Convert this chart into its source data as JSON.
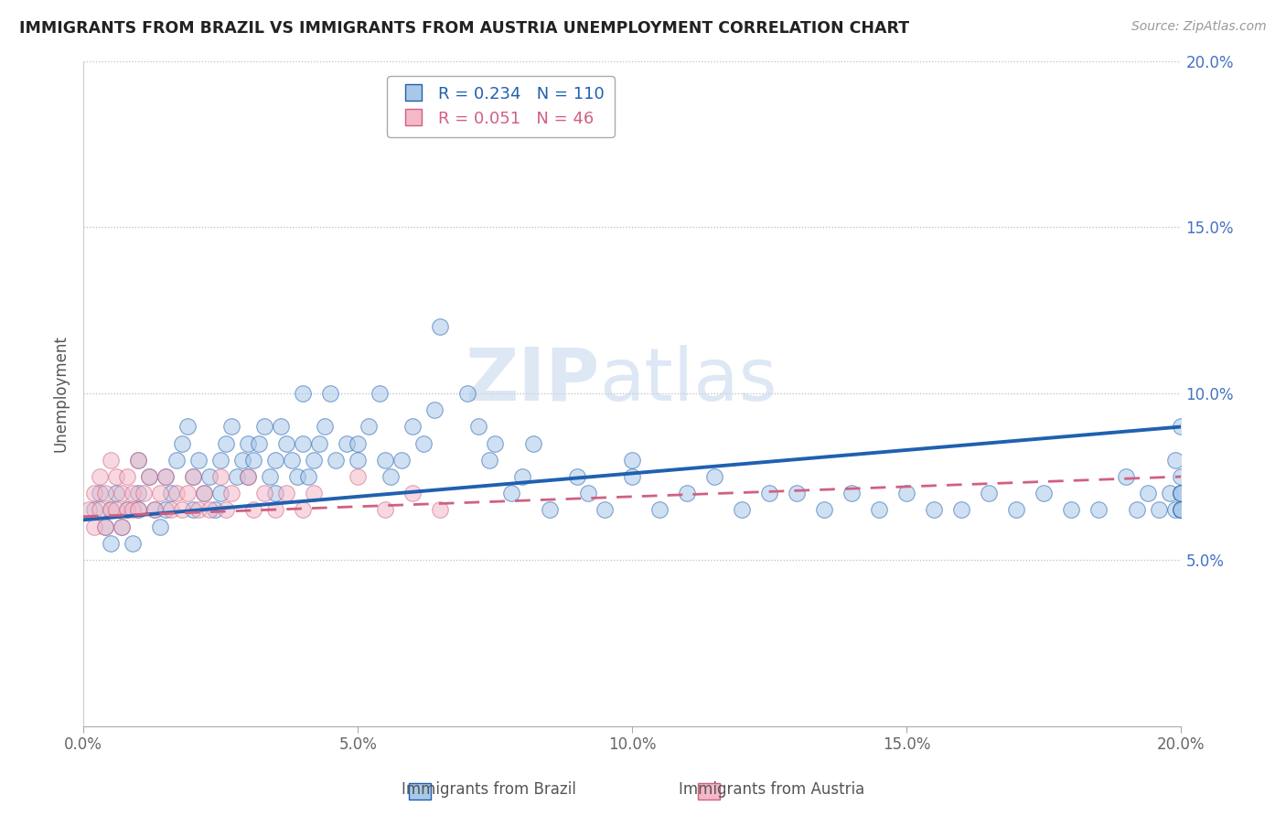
{
  "title": "IMMIGRANTS FROM BRAZIL VS IMMIGRANTS FROM AUSTRIA UNEMPLOYMENT CORRELATION CHART",
  "source": "Source: ZipAtlas.com",
  "ylabel": "Unemployment",
  "legend_label1": "Immigrants from Brazil",
  "legend_label2": "Immigrants from Austria",
  "R1": 0.234,
  "N1": 110,
  "R2": 0.051,
  "N2": 46,
  "xlim": [
    0.0,
    0.2
  ],
  "ylim": [
    0.0,
    0.2
  ],
  "xticks": [
    0.0,
    0.05,
    0.1,
    0.15,
    0.2
  ],
  "yticks": [
    0.05,
    0.1,
    0.15,
    0.2
  ],
  "color_brazil": "#a8c8e8",
  "color_austria": "#f4b8c8",
  "trendline_brazil": "#2060b0",
  "trendline_austria": "#d06080",
  "watermark_zip": "ZIP",
  "watermark_atlas": "atlas",
  "background_color": "#ffffff",
  "brazil_x": [
    0.002,
    0.003,
    0.004,
    0.005,
    0.005,
    0.006,
    0.007,
    0.008,
    0.009,
    0.01,
    0.01,
    0.01,
    0.012,
    0.013,
    0.014,
    0.015,
    0.015,
    0.016,
    0.017,
    0.018,
    0.019,
    0.02,
    0.02,
    0.021,
    0.022,
    0.023,
    0.024,
    0.025,
    0.025,
    0.026,
    0.027,
    0.028,
    0.029,
    0.03,
    0.03,
    0.031,
    0.032,
    0.033,
    0.034,
    0.035,
    0.035,
    0.036,
    0.037,
    0.038,
    0.039,
    0.04,
    0.04,
    0.041,
    0.042,
    0.043,
    0.044,
    0.045,
    0.046,
    0.048,
    0.05,
    0.05,
    0.052,
    0.054,
    0.055,
    0.056,
    0.058,
    0.06,
    0.062,
    0.064,
    0.065,
    0.07,
    0.072,
    0.074,
    0.075,
    0.078,
    0.08,
    0.082,
    0.085,
    0.09,
    0.092,
    0.095,
    0.1,
    0.1,
    0.105,
    0.11,
    0.115,
    0.12,
    0.125,
    0.13,
    0.135,
    0.14,
    0.145,
    0.15,
    0.155,
    0.16,
    0.165,
    0.17,
    0.175,
    0.18,
    0.185,
    0.19,
    0.192,
    0.194,
    0.196,
    0.198,
    0.199,
    0.199,
    0.2,
    0.2,
    0.2,
    0.2,
    0.2,
    0.2,
    0.2,
    0.2
  ],
  "brazil_y": [
    0.065,
    0.07,
    0.06,
    0.065,
    0.055,
    0.07,
    0.06,
    0.065,
    0.055,
    0.08,
    0.065,
    0.07,
    0.075,
    0.065,
    0.06,
    0.075,
    0.065,
    0.07,
    0.08,
    0.085,
    0.09,
    0.075,
    0.065,
    0.08,
    0.07,
    0.075,
    0.065,
    0.08,
    0.07,
    0.085,
    0.09,
    0.075,
    0.08,
    0.085,
    0.075,
    0.08,
    0.085,
    0.09,
    0.075,
    0.08,
    0.07,
    0.09,
    0.085,
    0.08,
    0.075,
    0.1,
    0.085,
    0.075,
    0.08,
    0.085,
    0.09,
    0.1,
    0.08,
    0.085,
    0.085,
    0.08,
    0.09,
    0.1,
    0.08,
    0.075,
    0.08,
    0.09,
    0.085,
    0.095,
    0.12,
    0.1,
    0.09,
    0.08,
    0.085,
    0.07,
    0.075,
    0.085,
    0.065,
    0.075,
    0.07,
    0.065,
    0.075,
    0.08,
    0.065,
    0.07,
    0.075,
    0.065,
    0.07,
    0.07,
    0.065,
    0.07,
    0.065,
    0.07,
    0.065,
    0.065,
    0.07,
    0.065,
    0.07,
    0.065,
    0.065,
    0.075,
    0.065,
    0.07,
    0.065,
    0.07,
    0.08,
    0.065,
    0.07,
    0.065,
    0.07,
    0.075,
    0.07,
    0.065,
    0.09,
    0.065
  ],
  "austria_x": [
    0.001,
    0.002,
    0.002,
    0.003,
    0.003,
    0.004,
    0.004,
    0.005,
    0.005,
    0.006,
    0.006,
    0.007,
    0.007,
    0.008,
    0.008,
    0.009,
    0.009,
    0.01,
    0.01,
    0.011,
    0.012,
    0.013,
    0.014,
    0.015,
    0.016,
    0.017,
    0.018,
    0.019,
    0.02,
    0.021,
    0.022,
    0.023,
    0.025,
    0.026,
    0.027,
    0.03,
    0.031,
    0.033,
    0.035,
    0.037,
    0.04,
    0.042,
    0.05,
    0.055,
    0.06,
    0.065
  ],
  "austria_y": [
    0.065,
    0.07,
    0.06,
    0.075,
    0.065,
    0.07,
    0.06,
    0.08,
    0.065,
    0.075,
    0.065,
    0.07,
    0.06,
    0.075,
    0.065,
    0.07,
    0.065,
    0.08,
    0.065,
    0.07,
    0.075,
    0.065,
    0.07,
    0.075,
    0.065,
    0.07,
    0.065,
    0.07,
    0.075,
    0.065,
    0.07,
    0.065,
    0.075,
    0.065,
    0.07,
    0.075,
    0.065,
    0.07,
    0.065,
    0.07,
    0.065,
    0.07,
    0.075,
    0.065,
    0.07,
    0.065
  ],
  "brazil_trendline_x0": 0.0,
  "brazil_trendline_y0": 0.062,
  "brazil_trendline_x1": 0.2,
  "brazil_trendline_y1": 0.09,
  "austria_trendline_x0": 0.0,
  "austria_trendline_y0": 0.063,
  "austria_trendline_x1": 0.2,
  "austria_trendline_y1": 0.075
}
